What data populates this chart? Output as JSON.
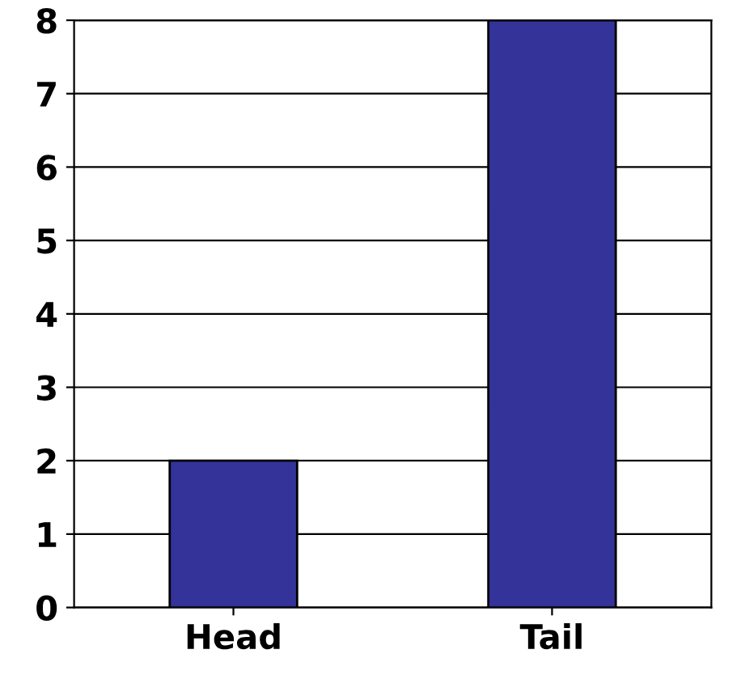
{
  "chart_data": {
    "type": "bar",
    "categories": [
      "Head",
      "Tail"
    ],
    "values": [
      2,
      8
    ],
    "color": "#333399",
    "ylim": [
      0,
      8
    ],
    "yticks": [
      0,
      1,
      2,
      3,
      4,
      5,
      6,
      7,
      8
    ],
    "grid": "y"
  }
}
